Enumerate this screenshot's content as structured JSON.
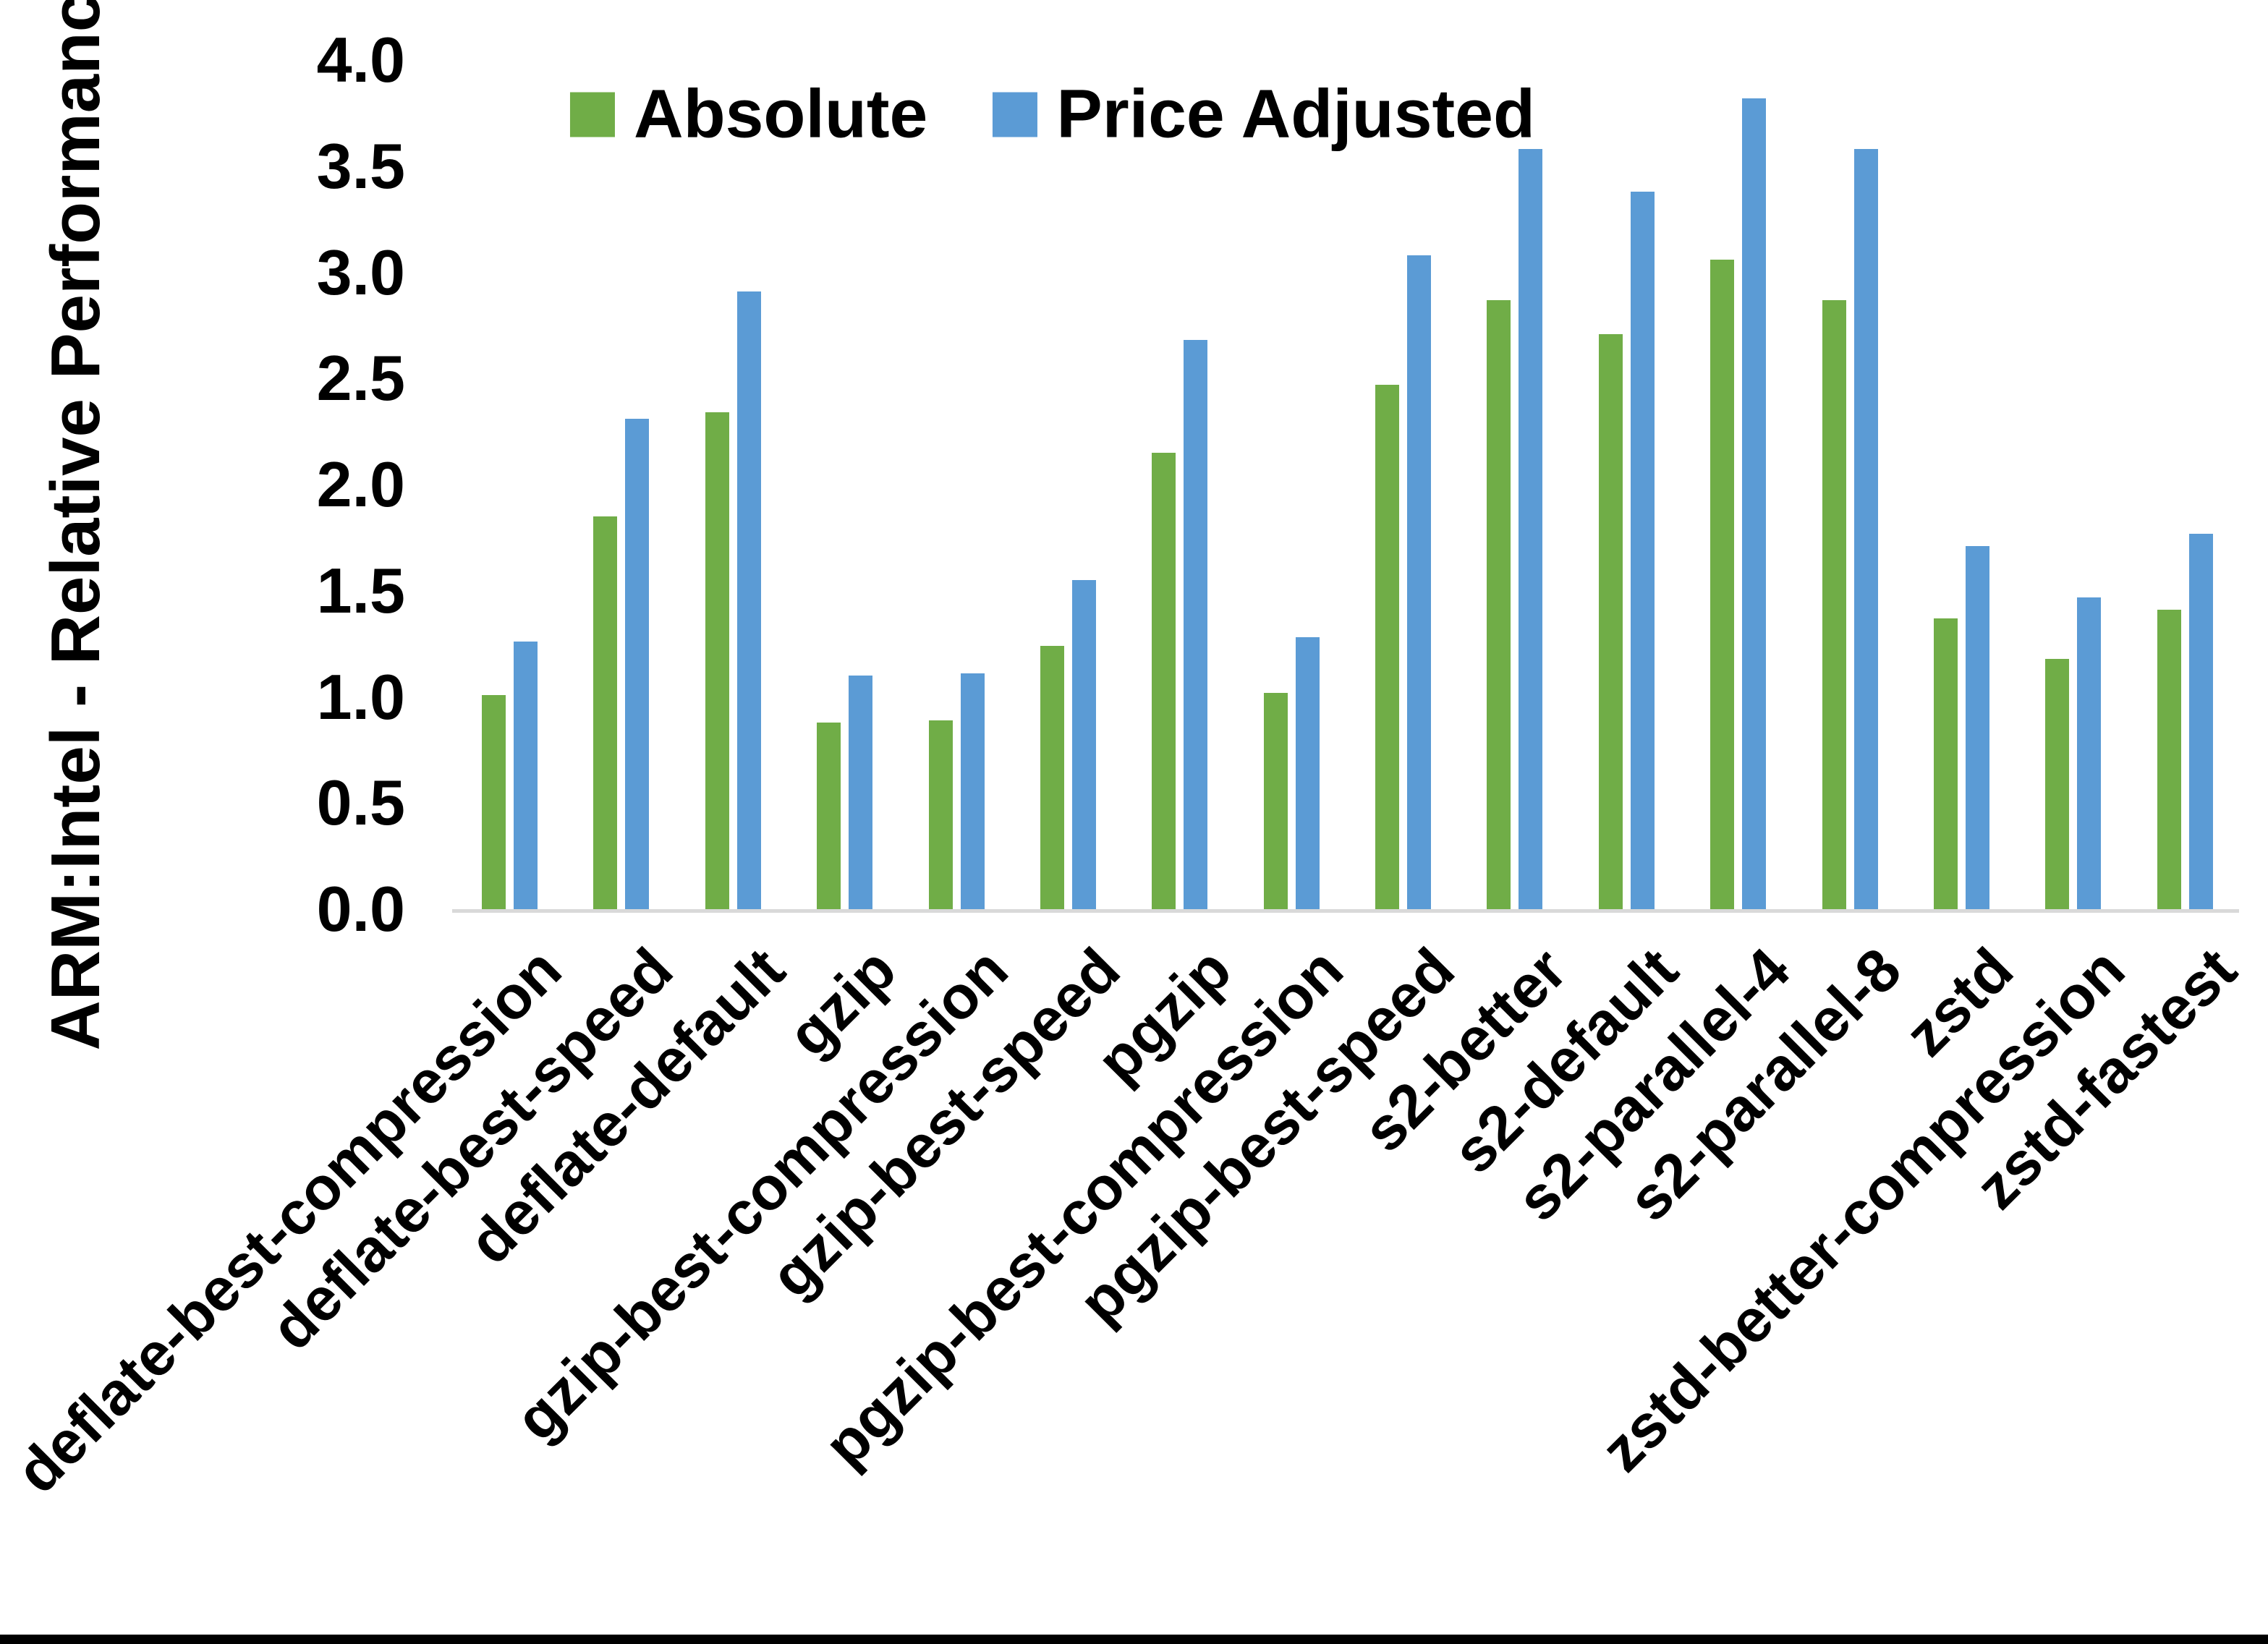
{
  "chart_data": {
    "type": "bar",
    "title": "",
    "xlabel": "",
    "ylabel": "ARM:Intel - Relative Performance",
    "ylim": [
      0,
      4
    ],
    "grid": "off",
    "legend_position": "top-center",
    "y_tick_labels": [
      "0.0",
      "0.5",
      "1.0",
      "1.5",
      "2.0",
      "2.5",
      "3.0",
      "3.5",
      "4.0"
    ],
    "categories": [
      "deflate-best-compression",
      "deflate-best-speed",
      "deflate-default",
      "gzip",
      "gzip-best-compression",
      "gzip-best-speed",
      "pgzip",
      "pgzip-best-compression",
      "pgzip-best-speed",
      "s2-better",
      "s2-default",
      "s2-parallel-4",
      "s2-parallel-8",
      "zstd",
      "zstd-better-compression",
      "zstd-fastest"
    ],
    "series": [
      {
        "name": "Absolute",
        "color": "#70AD47",
        "values": [
          1.01,
          1.85,
          2.34,
          0.88,
          0.89,
          1.24,
          2.15,
          1.02,
          2.47,
          2.87,
          2.71,
          3.06,
          2.87,
          1.37,
          1.18,
          1.41
        ]
      },
      {
        "name": "Price Adjusted",
        "color": "#5B9BD5",
        "values": [
          1.26,
          2.31,
          2.91,
          1.1,
          1.11,
          1.55,
          2.68,
          1.28,
          3.08,
          3.58,
          3.38,
          3.82,
          3.58,
          1.71,
          1.47,
          1.77
        ]
      }
    ]
  },
  "colors": {
    "background": "#FFFFFF",
    "axis_line": "#D9D9D9",
    "text": "#000000",
    "bottom_border": "#000000"
  }
}
